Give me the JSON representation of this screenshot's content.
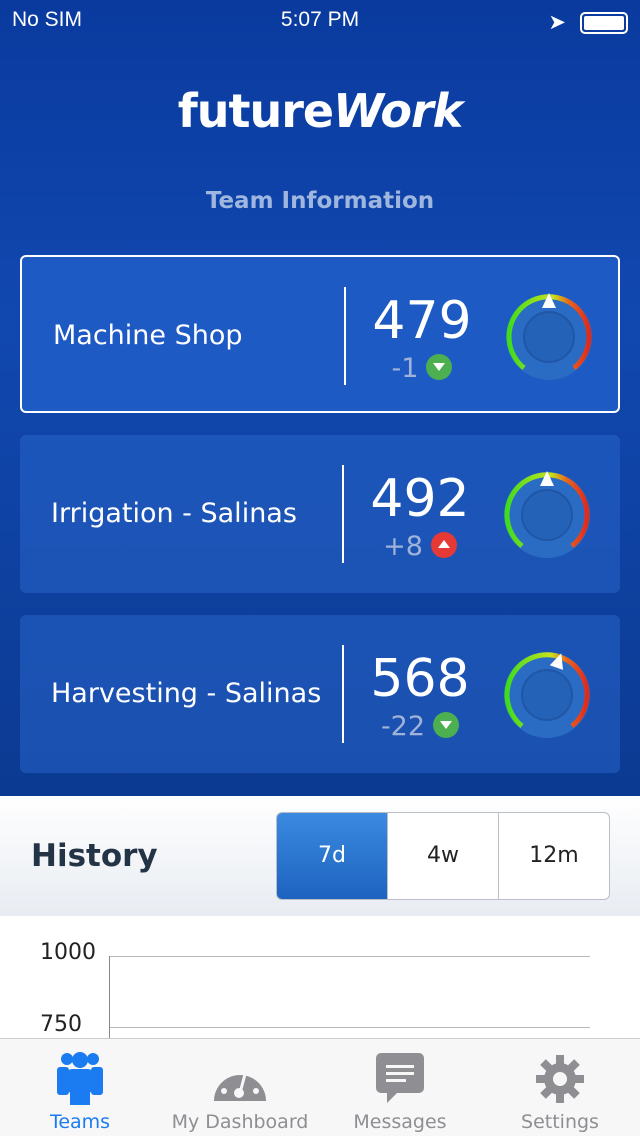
{
  "status": {
    "carrier": "No SIM",
    "time": "5:07 PM"
  },
  "app": {
    "logo_a": "future",
    "logo_b": "Work",
    "subtitle": "Team Information"
  },
  "teams": [
    {
      "name": "Machine Shop",
      "score": "479",
      "delta": "-1",
      "trend": "down",
      "selected": true,
      "gauge_level": 0.5
    },
    {
      "name": "Irrigation - Salinas",
      "score": "492",
      "delta": "+8",
      "trend": "up",
      "selected": false,
      "gauge_level": 0.5
    },
    {
      "name": "Harvesting - Salinas",
      "score": "568",
      "delta": "-22",
      "trend": "down",
      "selected": false,
      "gauge_level": 0.57
    }
  ],
  "history": {
    "title": "History",
    "ranges": [
      "7d",
      "4w",
      "12m"
    ],
    "selected": "7d",
    "y_ticks": [
      "1000",
      "750"
    ]
  },
  "tabs": [
    {
      "label": "Teams",
      "icon": "teams-icon",
      "active": true
    },
    {
      "label": "My Dashboard",
      "icon": "dashboard-icon"
    },
    {
      "label": "Messages",
      "icon": "messages-icon"
    },
    {
      "label": "Settings",
      "icon": "settings-icon"
    }
  ],
  "colors": {
    "accent": "#1a7cf0",
    "up": "#e53935",
    "down": "#4caf50"
  }
}
